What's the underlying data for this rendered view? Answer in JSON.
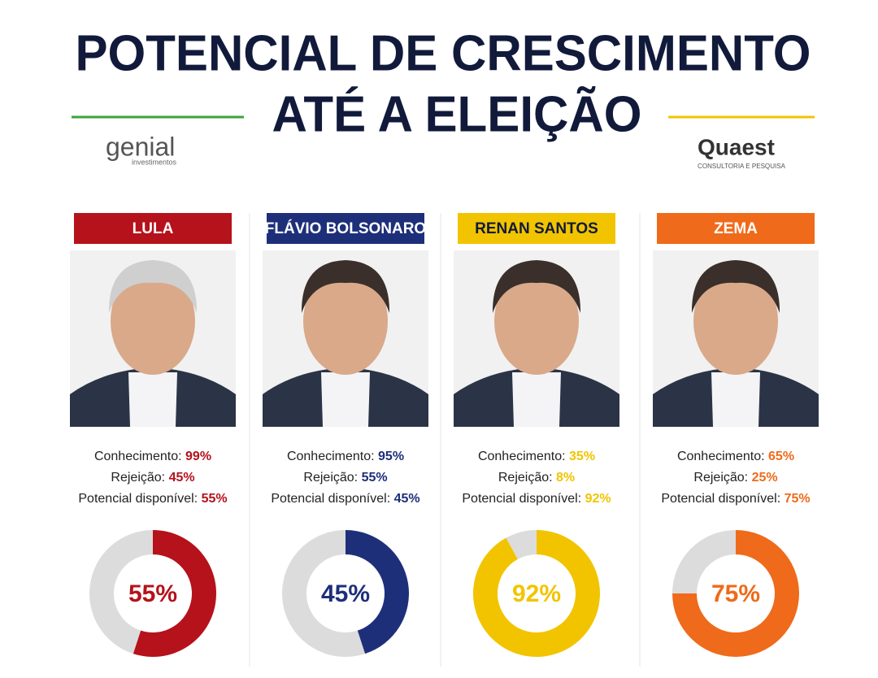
{
  "header": {
    "title_lines": [
      "POTENCIAL DE CRESCIMENTO",
      "ATÉ A ELEIÇÃO"
    ],
    "logo_left": {
      "name": "genial",
      "tagline": "investimentos"
    },
    "logo_right": {
      "name": "Quaest",
      "tagline": "CONSULTORIA E PESQUISA"
    }
  },
  "candidates": [
    {
      "name": "LULA",
      "color": "#b5121b",
      "labels": [
        "Conhecimento:",
        "Rejeição:",
        "Potencial disponível:"
      ],
      "values": [
        99,
        45,
        55
      ],
      "value_labels": [
        "99%",
        "45%",
        "55%"
      ]
    },
    {
      "name": "FLÁVIO BOLSONARO",
      "color": "#1e2f7a",
      "labels": [
        "Conhecimento:",
        "Rejeição:",
        "Potencial disponível:"
      ],
      "values": [
        95,
        55,
        45
      ],
      "value_labels": [
        "95%",
        "55%",
        "45%"
      ]
    },
    {
      "name": "RENAN SANTOS",
      "color": "#f2c400",
      "labels": [
        "Conhecimento:",
        "Rejeição:",
        "Potencial disponível:"
      ],
      "values": [
        35,
        8,
        92
      ],
      "value_labels": [
        "35%",
        "8%",
        "92%"
      ]
    },
    {
      "name": "ZEMA",
      "color": "#ef6a1a",
      "labels": [
        "Conhecimento:",
        "Rejeição:",
        "Potencial disponível:"
      ],
      "values": [
        65,
        25,
        75
      ],
      "value_labels": [
        "65%",
        "25%",
        "75%"
      ]
    }
  ]
}
